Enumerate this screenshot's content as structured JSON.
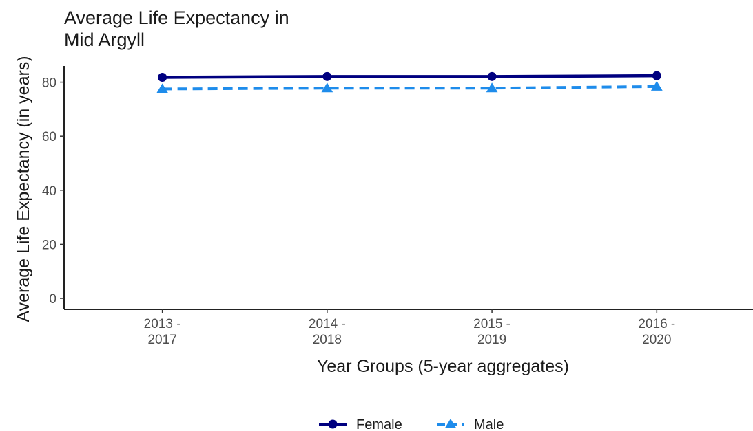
{
  "chart_data": {
    "type": "line",
    "title_lines": [
      "Average Life Expectancy in",
      "Mid Argyll"
    ],
    "xlabel": "Year Groups (5-year aggregates)",
    "ylabel": "Average Life Expectancy (in years)",
    "categories": [
      [
        "2013 -",
        "2017"
      ],
      [
        "2014 -",
        "2018"
      ],
      [
        "2015 -",
        "2019"
      ],
      [
        "2016 -",
        "2020"
      ]
    ],
    "ylim": [
      0,
      86
    ],
    "yticks": [
      0,
      20,
      40,
      60,
      80
    ],
    "grid": false,
    "legend_position": "bottom",
    "series": [
      {
        "name": "Female",
        "values": [
          81.8,
          82.1,
          82.1,
          82.4
        ],
        "color": "#000080",
        "marker": "circle",
        "line": "solid"
      },
      {
        "name": "Male",
        "values": [
          77.5,
          77.8,
          77.8,
          78.4
        ],
        "color": "#1E8CEB",
        "marker": "triangle",
        "line": "dashed"
      }
    ]
  }
}
